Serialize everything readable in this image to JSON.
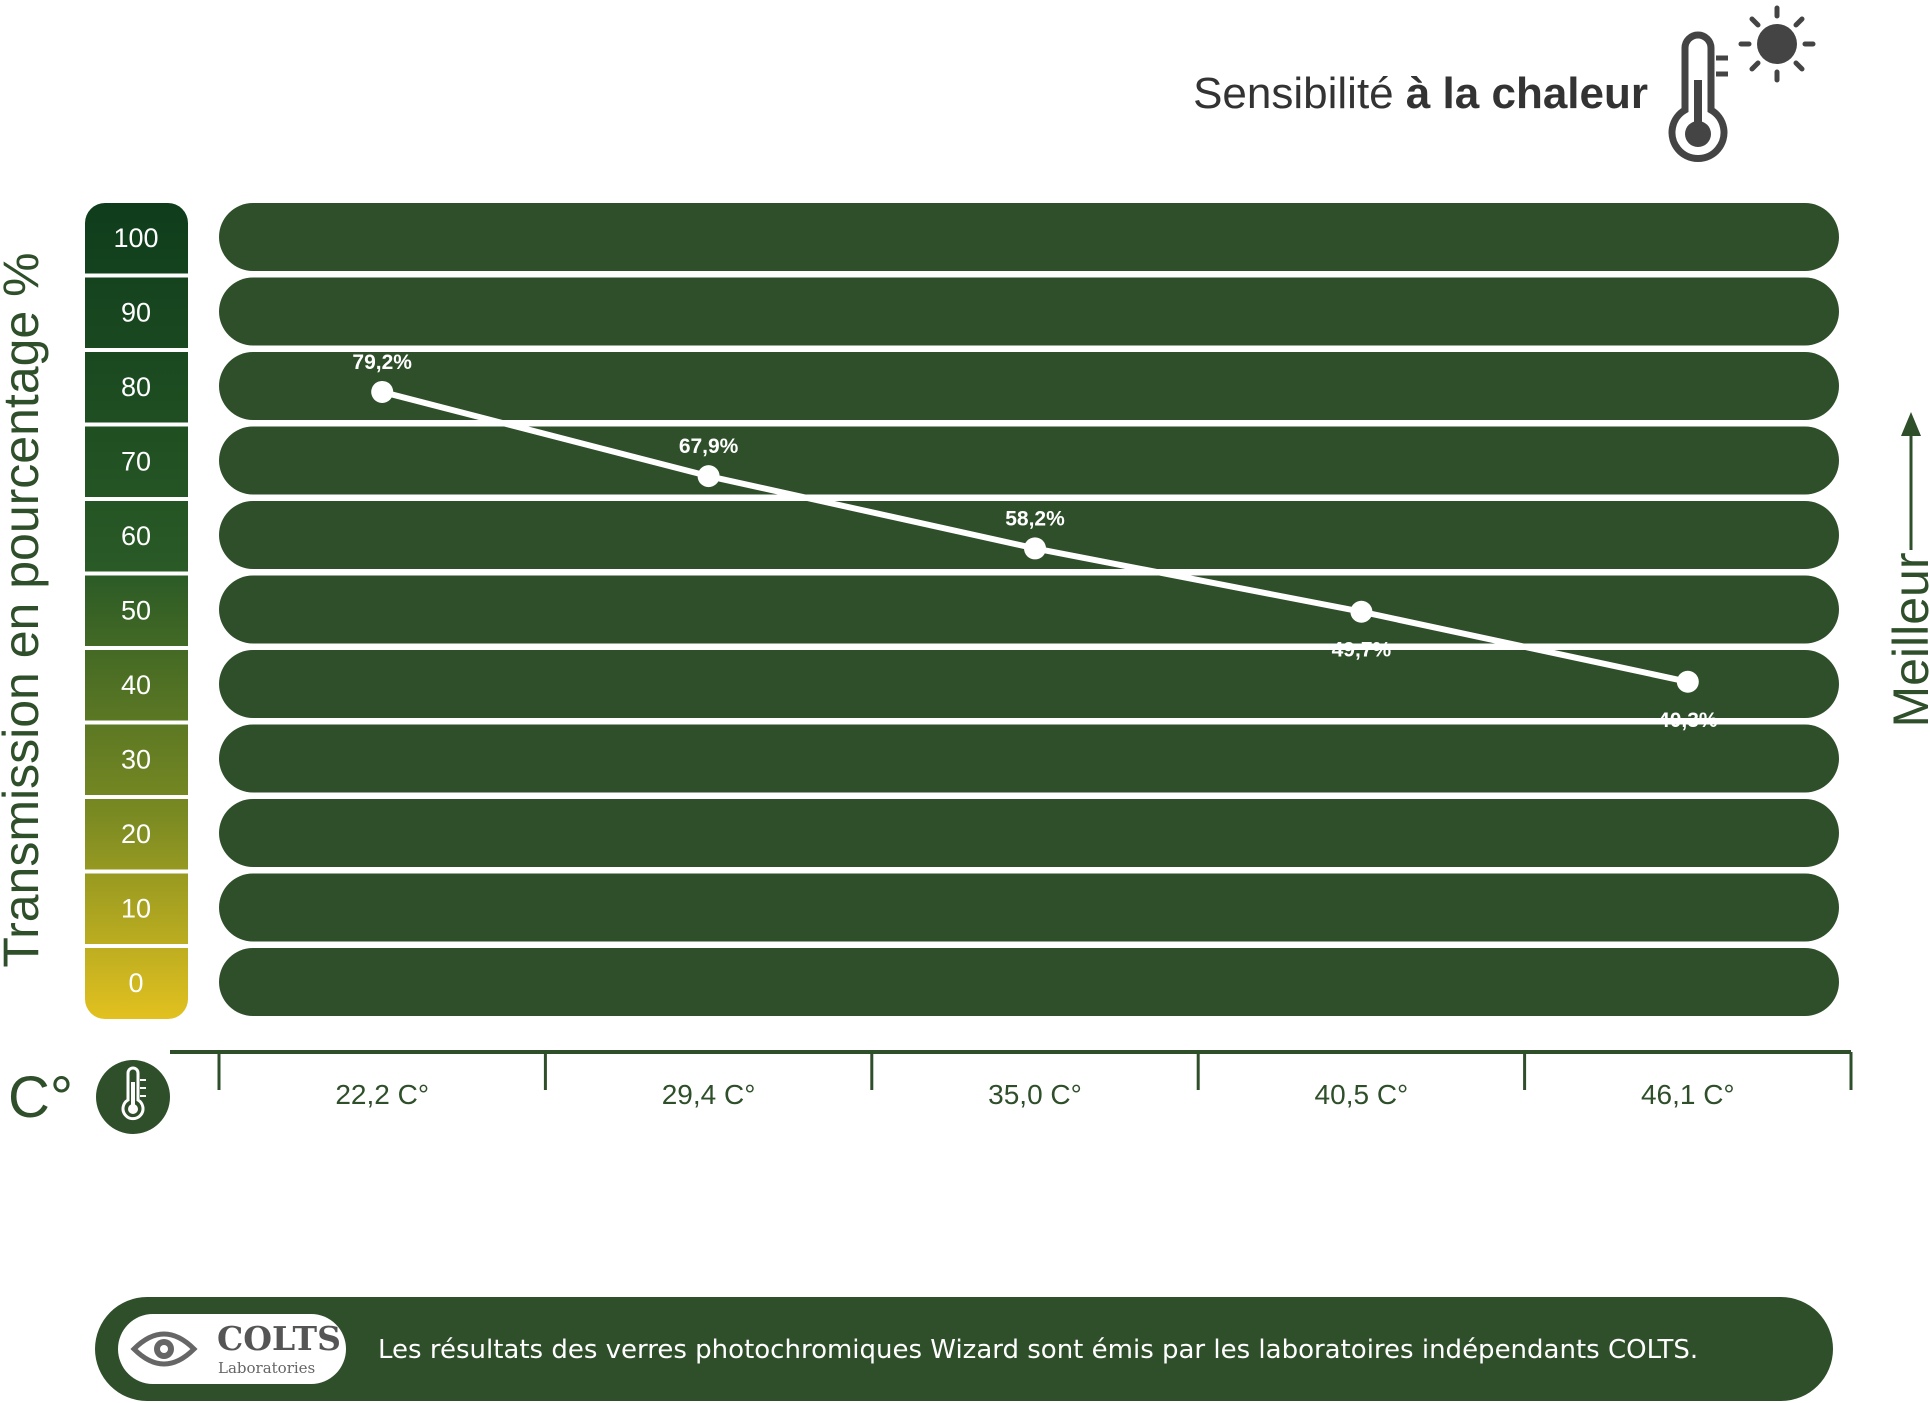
{
  "header": {
    "title_light": "Sensibilité ",
    "title_bold": "à la chaleur",
    "icon": "thermometer-sun-icon"
  },
  "y_axis": {
    "title": "Transmission en pourcentage  %",
    "ticks": [
      "100",
      "90",
      "80",
      "70",
      "60",
      "50",
      "40",
      "30",
      "20",
      "10",
      "0"
    ]
  },
  "x_axis": {
    "unit": "C°",
    "icon": "thermometer-icon"
  },
  "right_label": {
    "text": "Meilleur",
    "icon": "arrow-up-icon"
  },
  "colors": {
    "band": "#2f4f2b",
    "axis": "#2f4f2b",
    "scale_top": "#0f3d1c",
    "scale_bottom": "#e2c11f",
    "line": "#ffffff",
    "text_dark": "#333333"
  },
  "chart_data": {
    "type": "line",
    "categories": [
      "22,2 C°",
      "29,4 C°",
      "35,0 C°",
      "40,5 C°",
      "46,1 C°"
    ],
    "series": [
      {
        "values": [
          79.2,
          67.9,
          58.2,
          49.7,
          40.3
        ],
        "labels": [
          "79,2%",
          "67,9%",
          "58,2%",
          "49,7%",
          "40,3%"
        ]
      }
    ],
    "title": "Sensibilité à la chaleur",
    "ylabel": "Transmission en pourcentage  %",
    "xlabel": "C°",
    "ylim": [
      0,
      100
    ],
    "grid": true
  },
  "footer": {
    "logo_name": "COLTS",
    "logo_sub": "Laboratories",
    "logo_icon": "eye-icon",
    "text": "Les résultats des verres photochromiques Wizard sont émis par les laboratoires indépendants COLTS."
  }
}
